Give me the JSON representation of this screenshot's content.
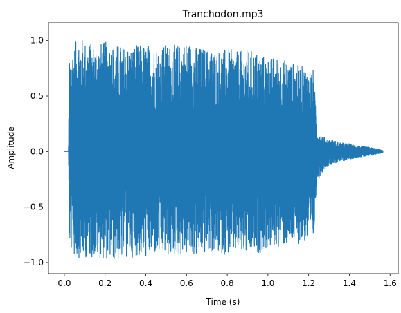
{
  "chart_data": {
    "type": "line",
    "title": "Tranchodon.mp3",
    "xlabel": "Time (s)",
    "ylabel": "Amplitude",
    "xlim": [
      -0.078,
      1.64
    ],
    "ylim": [
      -1.1,
      1.16
    ],
    "xticks": [
      0.0,
      0.2,
      0.4,
      0.6,
      0.8,
      1.0,
      1.2,
      1.4,
      1.6
    ],
    "xtick_labels": [
      "0.0",
      "0.2",
      "0.4",
      "0.6",
      "0.8",
      "1.0",
      "1.2",
      "1.4",
      "1.6"
    ],
    "yticks": [
      -1.0,
      -0.5,
      0.0,
      0.5,
      1.0
    ],
    "ytick_labels": [
      "−1.0",
      "−0.5",
      "0.0",
      "0.5",
      "1.0"
    ],
    "grid": false,
    "legend": "none",
    "series": [
      {
        "color": "#1f77b4",
        "envelope": {
          "time": [
            0.0,
            0.02,
            0.025,
            0.03,
            0.05,
            0.07,
            0.1,
            0.15,
            0.2,
            0.25,
            0.3,
            0.35,
            0.4,
            0.45,
            0.5,
            0.55,
            0.6,
            0.65,
            0.7,
            0.75,
            0.8,
            0.85,
            0.9,
            0.95,
            1.0,
            1.05,
            1.1,
            1.15,
            1.2,
            1.225,
            1.24,
            1.28,
            1.32,
            1.36,
            1.4,
            1.45,
            1.5,
            1.565
          ],
          "upper": [
            0.0,
            0.0,
            0.9,
            0.92,
            0.96,
            1.05,
            1.0,
            0.97,
            0.99,
            0.97,
            0.95,
            0.96,
            0.97,
            0.95,
            0.97,
            0.96,
            1.0,
            0.95,
            0.93,
            0.92,
            0.93,
            0.9,
            0.92,
            0.9,
            0.85,
            0.85,
            0.82,
            0.78,
            0.75,
            0.74,
            0.2,
            0.12,
            0.1,
            0.08,
            0.07,
            0.05,
            0.04,
            0.01
          ],
          "lower": [
            0.0,
            0.0,
            -0.85,
            -0.88,
            -0.95,
            -0.96,
            -0.96,
            -0.95,
            -0.97,
            -0.99,
            -0.96,
            -0.95,
            -0.96,
            -0.94,
            -0.95,
            -0.94,
            -0.93,
            -0.95,
            -0.92,
            -0.92,
            -0.93,
            -0.92,
            -0.94,
            -0.92,
            -0.88,
            -0.86,
            -0.85,
            -0.83,
            -0.82,
            -0.82,
            -0.28,
            -0.14,
            -0.11,
            -0.09,
            -0.07,
            -0.05,
            -0.04,
            -0.01
          ]
        }
      }
    ]
  }
}
